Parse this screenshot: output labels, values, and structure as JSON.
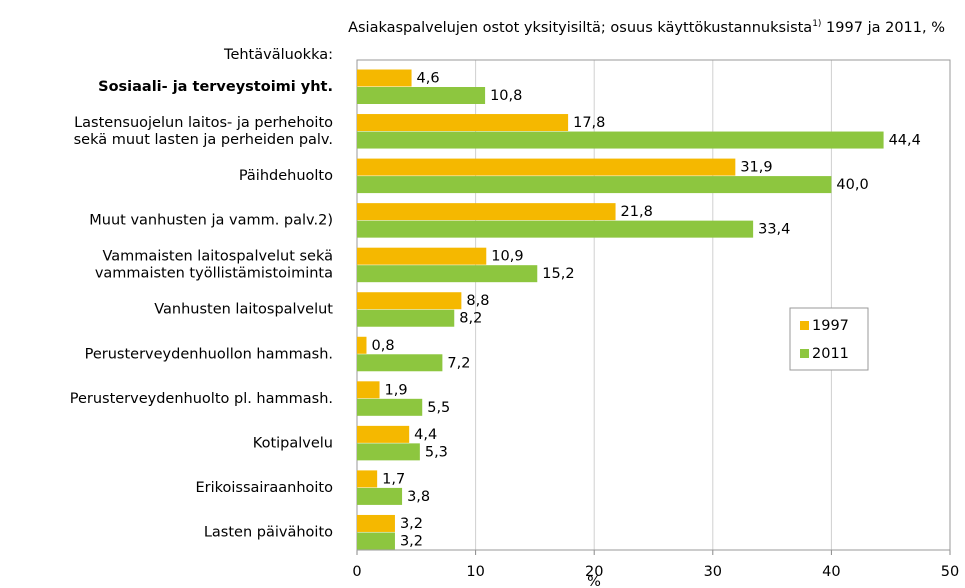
{
  "chart_data": {
    "type": "barh",
    "title": {
      "text": "Asiakaspalvelujen ostot yksityisiltä; osuus käyttökustannuksista",
      "note": "1)",
      "rest": " 1997 ja 2011, %"
    },
    "category_axis_label": "Tehtäväluokka:",
    "x_label": "%",
    "categories": [
      "Sosiaali- ja terveystoimi yht.",
      [
        "Lastensuojelun laitos- ja perhehoito",
        "sekä muut lasten ja perheiden palv."
      ],
      "Päihdehuolto",
      "Muut vanhusten ja vamm. palv.2)",
      [
        "Vammaisten laitospalvelut sekä",
        "vammaisten työllistämistoiminta"
      ],
      "Vanhusten laitospalvelut",
      "Perusterveydenhuollon hammash.",
      "Perusterveydenhuolto pl. hammash.",
      "Kotipalvelu",
      "Erikoissairaanhoito",
      "Lasten päivähoito"
    ],
    "series": [
      {
        "name": "1997",
        "color": "#f5b800",
        "values": [
          4.6,
          17.8,
          31.9,
          21.8,
          10.9,
          8.8,
          0.8,
          1.9,
          4.4,
          1.7,
          3.2
        ],
        "value_labels": [
          "4,6",
          "17,8",
          "31,9",
          "21,8",
          "10,9",
          "8,8",
          "0,8",
          "1,9",
          "4,4",
          "1,7",
          "3,2"
        ]
      },
      {
        "name": "2011",
        "color": "#8dc63f",
        "values": [
          10.8,
          44.4,
          40.0,
          33.4,
          15.2,
          8.2,
          7.2,
          5.5,
          5.3,
          3.8,
          3.2
        ],
        "value_labels": [
          "10,8",
          "44,4",
          "40,0",
          "33,4",
          "15,2",
          "8,2",
          "7,2",
          "5,5",
          "5,3",
          "3,8",
          "3,2"
        ]
      }
    ],
    "xlim": [
      0,
      50
    ],
    "xticks": [
      0,
      10,
      20,
      30,
      40,
      50
    ],
    "grid": true,
    "legend": "right"
  }
}
